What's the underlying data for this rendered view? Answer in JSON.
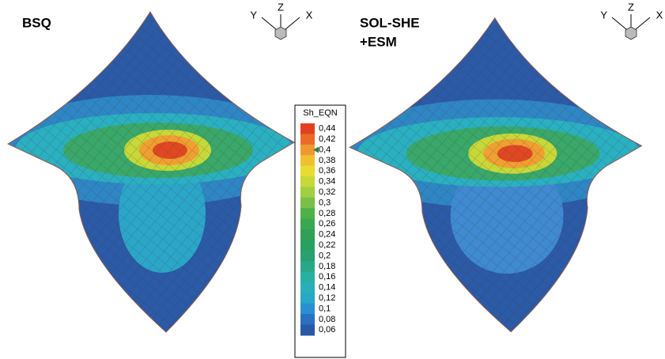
{
  "panels": [
    {
      "title_lines": [
        "BSQ"
      ]
    },
    {
      "title_lines": [
        "SOL-SHE",
        "+ESM"
      ]
    }
  ],
  "triads": [
    {
      "y": "Y",
      "z": "Z",
      "x": "X"
    },
    {
      "y": "Y",
      "z": "Z",
      "x": "X"
    }
  ],
  "legend": {
    "title": "Sh_EQN",
    "labels": [
      "0,44",
      "0,42",
      "0,4",
      "0,38",
      "0,36",
      "0,34",
      "0,32",
      "0,3",
      "0,28",
      "0,26",
      "0,24",
      "0,22",
      "0,2",
      "0,18",
      "0,16",
      "0,14",
      "0,12",
      "0,1",
      "0,08",
      "0,06"
    ]
  }
}
